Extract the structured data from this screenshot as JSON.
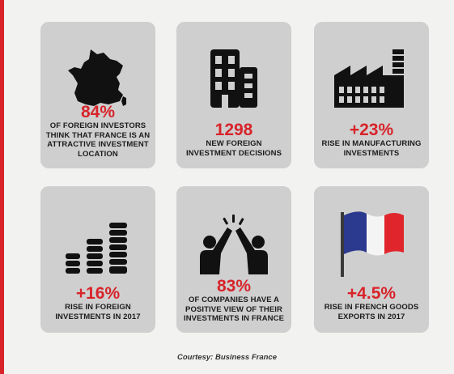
{
  "cards": [
    {
      "value": "84%",
      "lines": [
        "OF FOREIGN INVESTORS",
        "THINK THAT FRANCE IS AN",
        "ATTRACTIVE INVESTMENT",
        "LOCATION"
      ],
      "icon": "france-map-icon"
    },
    {
      "value": "1298",
      "lines": [
        "NEW FOREIGN",
        "INVESTMENT DECISIONS"
      ],
      "icon": "buildings-icon"
    },
    {
      "value": "+23%",
      "lines": [
        "RISE IN MANUFACTURING",
        "INVESTMENTS"
      ],
      "icon": "factory-icon"
    },
    {
      "value": "+16%",
      "lines": [
        "RISE IN FOREIGN",
        "INVESTMENTS IN 2017"
      ],
      "icon": "coin-stacks-icon"
    },
    {
      "value": "83%",
      "lines": [
        "OF COMPANIES HAVE A",
        "POSITIVE VIEW OF THEIR",
        "INVESTMENTS IN FRANCE"
      ],
      "icon": "high-five-icon"
    },
    {
      "value": "+4.5%",
      "lines": [
        "RISE IN FRENCH GOODS",
        "EXPORTS IN 2017"
      ],
      "icon": "french-flag-icon"
    }
  ],
  "credit": "Courtesy: Business France",
  "colors": {
    "accent": "#d8232a",
    "card": "#cfcfcf",
    "text": "#1c1c1c",
    "flag_blue": "#2b3a8f",
    "flag_red": "#e0262c"
  }
}
